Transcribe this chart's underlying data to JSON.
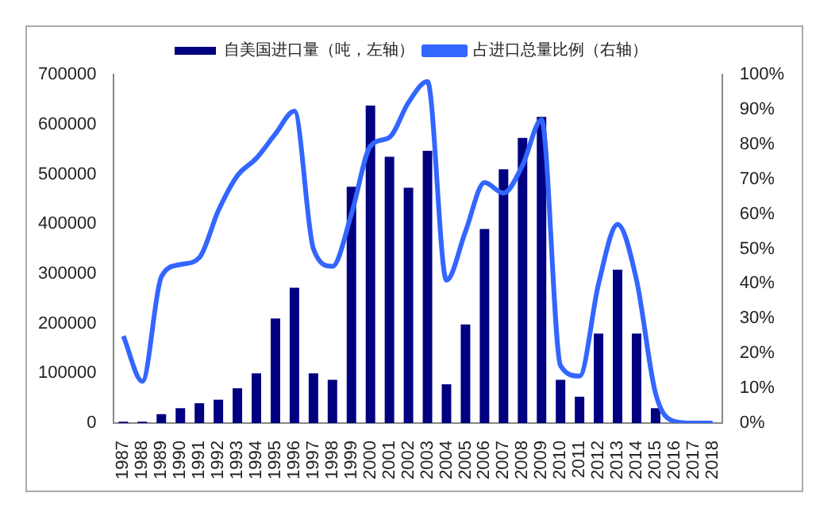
{
  "chart_data": {
    "type": "bar",
    "categories": [
      "1987",
      "1988",
      "1989",
      "1990",
      "1991",
      "1992",
      "1993",
      "1994",
      "1995",
      "1996",
      "1997",
      "1998",
      "1999",
      "2000",
      "2001",
      "2002",
      "2003",
      "2004",
      "2005",
      "2006",
      "2007",
      "2008",
      "2009",
      "2010",
      "2011",
      "2012",
      "2013",
      "2014",
      "2015",
      "2016",
      "2017",
      "2018"
    ],
    "series": [
      {
        "name": "自美国进口量（吨，左轴）",
        "color": "#000080",
        "values": [
          3000,
          3000,
          18000,
          30000,
          40000,
          47000,
          70000,
          100000,
          210000,
          272000,
          100000,
          87000,
          475000,
          638000,
          535000,
          473000,
          547000,
          78000,
          198000,
          390000,
          510000,
          573000,
          615000,
          87000,
          53000,
          180000,
          308000,
          180000,
          30000,
          0,
          0,
          0
        ]
      },
      {
        "name": "占进口总量比例（右轴）",
        "type": "line",
        "axis": "y2",
        "color": "#3366ff",
        "values": [
          25,
          12,
          42,
          45.5,
          47.5,
          61,
          71,
          76,
          83,
          89.5,
          50,
          45,
          60,
          79.5,
          82,
          92,
          98,
          41,
          55,
          69,
          66,
          74,
          87,
          16.5,
          13.5,
          40,
          57,
          41,
          8.5,
          0.5,
          0,
          0
        ]
      }
    ],
    "ylim": [
      0,
      700000
    ],
    "yticks": [
      0,
      100000,
      200000,
      300000,
      400000,
      500000,
      600000,
      700000
    ],
    "y2lim": [
      0,
      100
    ],
    "y2ticks": [
      {
        "value": 0,
        "label": "0%"
      },
      {
        "value": 10,
        "label": "10%"
      },
      {
        "value": 20,
        "label": "20%"
      },
      {
        "value": 30,
        "label": "30%"
      },
      {
        "value": 40,
        "label": "40%"
      },
      {
        "value": 50,
        "label": "50%"
      },
      {
        "value": 60,
        "label": "60%"
      },
      {
        "value": 70,
        "label": "70%"
      },
      {
        "value": 80,
        "label": "80%"
      },
      {
        "value": 90,
        "label": "90%"
      },
      {
        "value": 100,
        "label": "100%"
      }
    ],
    "grid": false,
    "legend": "top",
    "marker": "none"
  }
}
